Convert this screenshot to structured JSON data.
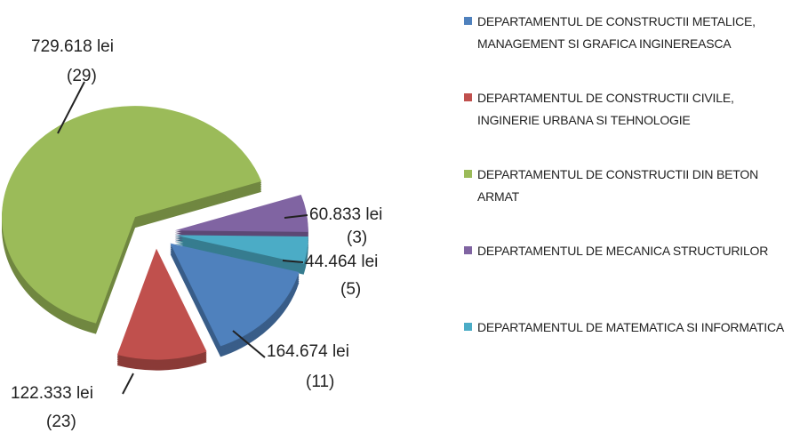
{
  "chart_data": {
    "type": "pie",
    "categories": [
      "DEPARTAMENTUL DE CONSTRUCTII METALICE, MANAGEMENT SI GRAFICA INGINEREASCA",
      "DEPARTAMENTUL DE CONSTRUCTII CIVILE, INGINERIE URBANA SI TEHNOLOGIE",
      "DEPARTAMENTUL DE CONSTRUCTII DIN BETON ARMAT",
      "DEPARTAMENTUL DE MECANICA STRUCTURILOR",
      "DEPARTAMENTUL DE MATEMATICA SI INFORMATICA"
    ],
    "values": [
      164674,
      122333,
      729618,
      60833,
      44464
    ],
    "value_labels": [
      "164.674 lei",
      "122.333 lei",
      "729.618 lei",
      "60.833 lei",
      "44.464 lei"
    ],
    "counts": [
      11,
      23,
      29,
      3,
      5
    ],
    "count_labels": [
      "(11)",
      "(23)",
      "(29)",
      "(3)",
      "(5)"
    ],
    "colors": [
      "#4f81bd",
      "#c0504d",
      "#9bbb59",
      "#8064a2",
      "#4bacc6"
    ],
    "legend": "right"
  }
}
